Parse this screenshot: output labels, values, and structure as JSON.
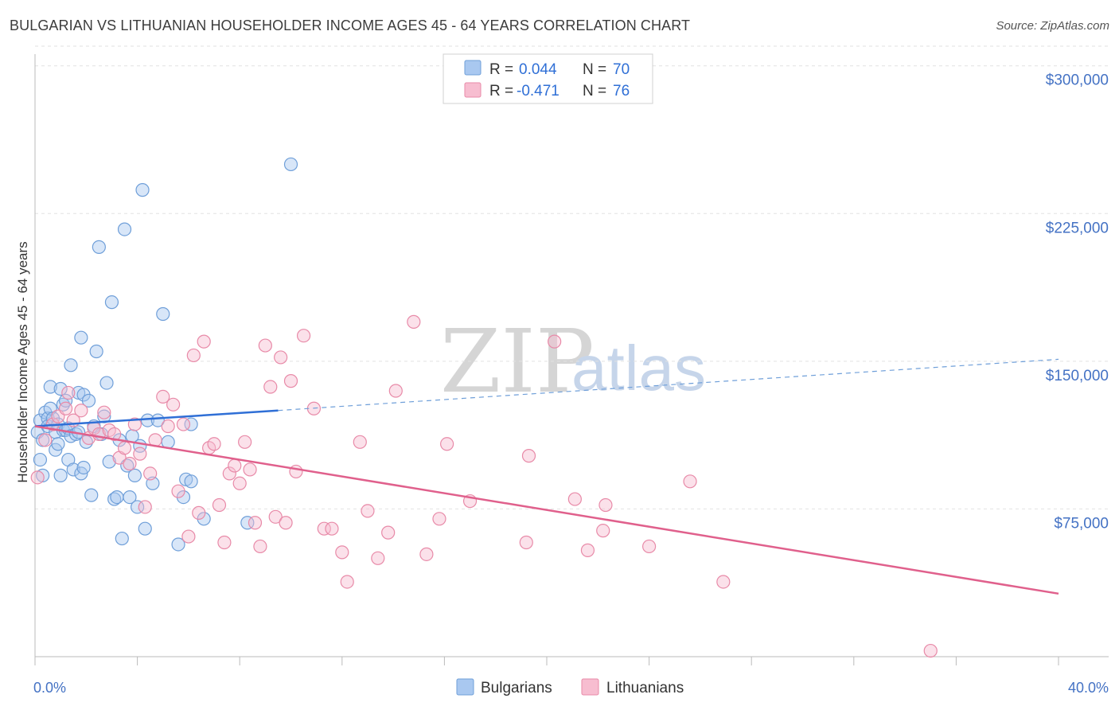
{
  "title": "BULGARIAN VS LITHUANIAN HOUSEHOLDER INCOME AGES 45 - 64 YEARS CORRELATION CHART",
  "source": "Source: ZipAtlas.com",
  "watermark": {
    "zip": "ZIP",
    "atlas": "atlas"
  },
  "legend": {
    "rows": [
      {
        "r_label": "R = ",
        "r_value": "0.044",
        "n_label": "N = ",
        "n_value": "70",
        "color": "#a9c8f0",
        "stroke": "#6f9fd9"
      },
      {
        "r_label": "R = ",
        "r_value": "-0.471",
        "n_label": "N = ",
        "n_value": "76",
        "color": "#f7bdd0",
        "stroke": "#e88aa8"
      }
    ]
  },
  "bottom_legend": [
    {
      "label": "Bulgarians",
      "color": "#a9c8f0",
      "stroke": "#6f9fd9"
    },
    {
      "label": "Lithuanians",
      "color": "#f7bdd0",
      "stroke": "#e88aa8"
    }
  ],
  "chart_data": {
    "type": "scatter",
    "title": "BULGARIAN VS LITHUANIAN HOUSEHOLDER INCOME AGES 45 - 64 YEARS CORRELATION CHART",
    "xlabel": "",
    "ylabel": "Householder Income Ages 45 - 64 years",
    "xlim": [
      0,
      40
    ],
    "ylim": [
      0,
      310000
    ],
    "x_tick_labels": [
      "0.0%",
      "40.0%"
    ],
    "y_ticks": [
      75000,
      150000,
      225000,
      300000
    ],
    "y_tick_labels": [
      "$75,000",
      "$150,000",
      "$225,000",
      "$300,000"
    ],
    "grid": true,
    "series": [
      {
        "name": "Bulgarians",
        "color": "#6f9fd9",
        "fill": "#a9c8f0",
        "trend": {
          "x0": 0,
          "y0": 117000,
          "x1": 9.5,
          "y1": 125000,
          "dash_to_x": 40,
          "dash_to_y": 151000
        },
        "points": [
          [
            0.1,
            114000
          ],
          [
            0.2,
            120000
          ],
          [
            0.3,
            110000
          ],
          [
            0.3,
            92000
          ],
          [
            0.4,
            124000
          ],
          [
            0.5,
            121000
          ],
          [
            0.5,
            117000
          ],
          [
            0.6,
            137000
          ],
          [
            0.6,
            126000
          ],
          [
            0.7,
            121000
          ],
          [
            0.8,
            114000
          ],
          [
            0.8,
            105000
          ],
          [
            0.9,
            118000
          ],
          [
            0.9,
            108000
          ],
          [
            1.0,
            136000
          ],
          [
            1.0,
            92000
          ],
          [
            1.1,
            115000
          ],
          [
            1.1,
            128000
          ],
          [
            1.2,
            130000
          ],
          [
            1.2,
            115000
          ],
          [
            1.3,
            116000
          ],
          [
            1.3,
            100000
          ],
          [
            1.4,
            148000
          ],
          [
            1.4,
            112000
          ],
          [
            1.5,
            95000
          ],
          [
            1.6,
            113000
          ],
          [
            1.7,
            134000
          ],
          [
            1.7,
            114000
          ],
          [
            1.8,
            162000
          ],
          [
            1.8,
            93000
          ],
          [
            1.9,
            96000
          ],
          [
            1.9,
            133000
          ],
          [
            2.0,
            109000
          ],
          [
            2.1,
            130000
          ],
          [
            2.2,
            82000
          ],
          [
            2.3,
            117000
          ],
          [
            2.4,
            155000
          ],
          [
            2.5,
            208000
          ],
          [
            2.6,
            113000
          ],
          [
            2.7,
            122000
          ],
          [
            2.8,
            139000
          ],
          [
            2.9,
            99000
          ],
          [
            3.0,
            180000
          ],
          [
            3.1,
            80000
          ],
          [
            3.2,
            81000
          ],
          [
            3.3,
            110000
          ],
          [
            3.4,
            60000
          ],
          [
            3.5,
            217000
          ],
          [
            3.6,
            97000
          ],
          [
            3.7,
            81000
          ],
          [
            3.8,
            112000
          ],
          [
            3.9,
            92000
          ],
          [
            4.0,
            76000
          ],
          [
            4.1,
            107000
          ],
          [
            4.2,
            237000
          ],
          [
            4.3,
            65000
          ],
          [
            4.4,
            120000
          ],
          [
            4.6,
            88000
          ],
          [
            4.8,
            120000
          ],
          [
            5.0,
            174000
          ],
          [
            5.2,
            109000
          ],
          [
            5.6,
            57000
          ],
          [
            5.8,
            81000
          ],
          [
            5.9,
            90000
          ],
          [
            6.1,
            89000
          ],
          [
            6.1,
            118000
          ],
          [
            6.6,
            70000
          ],
          [
            8.3,
            68000
          ],
          [
            10.0,
            250000
          ],
          [
            0.2,
            100000
          ]
        ]
      },
      {
        "name": "Lithuanians",
        "color": "#e88aa8",
        "fill": "#f7bdd0",
        "trend": {
          "x0": 0,
          "y0": 117000,
          "x1": 40,
          "y1": 32000
        },
        "points": [
          [
            0.1,
            91000
          ],
          [
            0.4,
            110000
          ],
          [
            0.7,
            118000
          ],
          [
            0.9,
            122000
          ],
          [
            1.2,
            126000
          ],
          [
            1.3,
            134000
          ],
          [
            1.5,
            120000
          ],
          [
            1.8,
            125000
          ],
          [
            2.1,
            111000
          ],
          [
            2.3,
            116000
          ],
          [
            2.5,
            113000
          ],
          [
            2.7,
            124000
          ],
          [
            2.9,
            115000
          ],
          [
            3.1,
            113000
          ],
          [
            3.3,
            101000
          ],
          [
            3.5,
            106000
          ],
          [
            3.7,
            98000
          ],
          [
            3.9,
            118000
          ],
          [
            4.1,
            103000
          ],
          [
            4.3,
            76000
          ],
          [
            4.5,
            93000
          ],
          [
            4.7,
            110000
          ],
          [
            5.0,
            132000
          ],
          [
            5.2,
            117000
          ],
          [
            5.4,
            128000
          ],
          [
            5.6,
            84000
          ],
          [
            5.8,
            118000
          ],
          [
            6.0,
            61000
          ],
          [
            6.2,
            153000
          ],
          [
            6.4,
            73000
          ],
          [
            6.6,
            160000
          ],
          [
            6.8,
            106000
          ],
          [
            7.0,
            108000
          ],
          [
            7.2,
            77000
          ],
          [
            7.4,
            58000
          ],
          [
            7.6,
            93000
          ],
          [
            7.8,
            97000
          ],
          [
            8.0,
            88000
          ],
          [
            8.2,
            109000
          ],
          [
            8.4,
            95000
          ],
          [
            8.6,
            68000
          ],
          [
            8.8,
            56000
          ],
          [
            9.0,
            158000
          ],
          [
            9.2,
            137000
          ],
          [
            9.4,
            71000
          ],
          [
            9.6,
            152000
          ],
          [
            9.8,
            68000
          ],
          [
            10.0,
            140000
          ],
          [
            10.2,
            94000
          ],
          [
            10.5,
            163000
          ],
          [
            10.9,
            126000
          ],
          [
            11.3,
            65000
          ],
          [
            11.6,
            65000
          ],
          [
            12.0,
            53000
          ],
          [
            12.2,
            38000
          ],
          [
            12.7,
            109000
          ],
          [
            13.0,
            74000
          ],
          [
            13.4,
            50000
          ],
          [
            13.8,
            63000
          ],
          [
            14.1,
            135000
          ],
          [
            14.8,
            170000
          ],
          [
            15.3,
            52000
          ],
          [
            15.8,
            70000
          ],
          [
            16.1,
            108000
          ],
          [
            17.0,
            79000
          ],
          [
            19.2,
            58000
          ],
          [
            19.3,
            102000
          ],
          [
            20.3,
            160000
          ],
          [
            21.1,
            80000
          ],
          [
            21.6,
            54000
          ],
          [
            22.2,
            64000
          ],
          [
            22.3,
            77000
          ],
          [
            24.0,
            56000
          ],
          [
            25.6,
            89000
          ],
          [
            26.9,
            38000
          ],
          [
            35.0,
            3000
          ]
        ]
      }
    ]
  }
}
